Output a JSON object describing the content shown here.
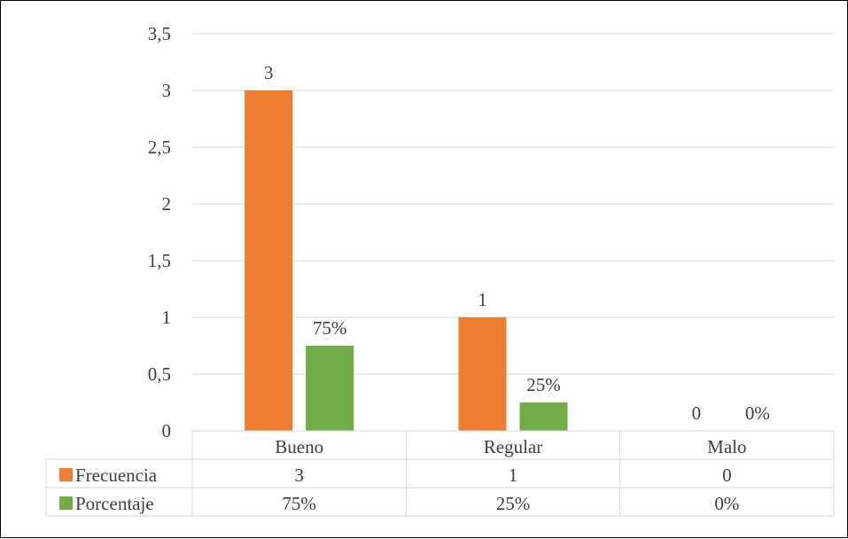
{
  "chart_data": {
    "type": "bar",
    "title": "",
    "xlabel": "",
    "ylabel": "",
    "ylim": [
      0,
      3.5
    ],
    "y_ticks": [
      "0",
      "0,5",
      "1",
      "1,5",
      "2",
      "2,5",
      "3",
      "3,5"
    ],
    "grid": true,
    "legend_placement": "data-table-left",
    "categories": [
      "Bueno",
      "Regular",
      "Malo"
    ],
    "series": [
      {
        "name": "Frecuencia",
        "color": "#ED7D31",
        "values": [
          3,
          1,
          0
        ],
        "data_labels": [
          "3",
          "1",
          "0"
        ]
      },
      {
        "name": "Porcentaje",
        "color": "#70AD47",
        "values": [
          0.75,
          0.25,
          0
        ],
        "data_labels": [
          "75%",
          "25%",
          "0%"
        ]
      }
    ]
  }
}
